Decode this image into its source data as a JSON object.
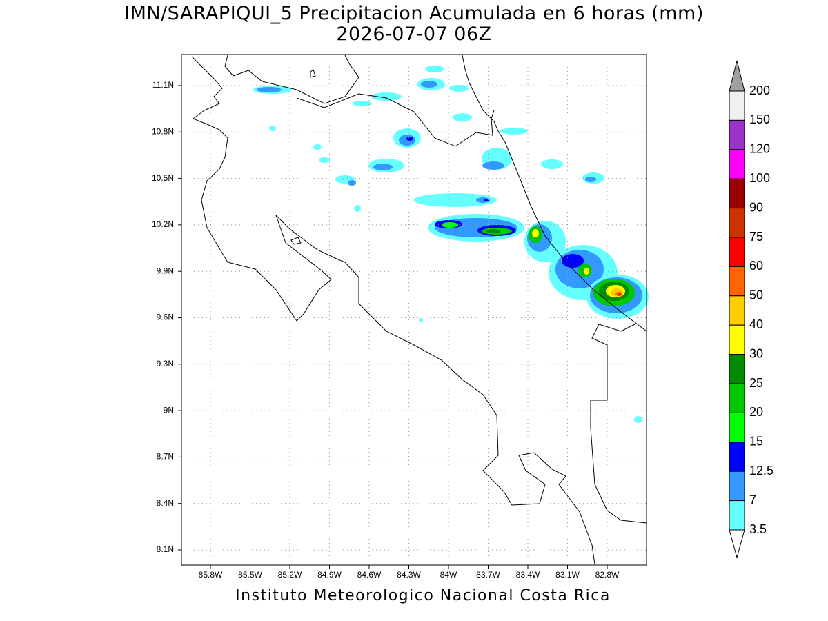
{
  "header": {
    "title": "IMN/SARAPIQUI_5 Precipitacion Acumulada en 6 horas (mm)",
    "subtitle": "2026-07-07 06Z"
  },
  "map": {
    "lon_labels": [
      "85.8W",
      "85.5W",
      "85.2W",
      "84.9W",
      "84.6W",
      "84.3W",
      "84W",
      "83.7W",
      "83.4W",
      "83.1W",
      "82.8W"
    ],
    "lat_labels": [
      "11.1N",
      "10.8N",
      "10.5N",
      "10.2N",
      "9.9N",
      "9.6N",
      "9.3N",
      "9N",
      "8.7N",
      "8.4N",
      "8.1N"
    ]
  },
  "colorbar": {
    "labels": [
      "200",
      "150",
      "120",
      "100",
      "90",
      "75",
      "60",
      "50",
      "40",
      "30",
      "25",
      "20",
      "15",
      "12.5",
      "7",
      "3.5"
    ],
    "colors": [
      "#f0f0f0",
      "#9933cc",
      "#ff00ff",
      "#990000",
      "#cc3300",
      "#ff0000",
      "#ff6600",
      "#ffcc00",
      "#ffff00",
      "#008c00",
      "#00c800",
      "#00ff00",
      "#0000ff",
      "#3399ff",
      "#66ffff"
    ],
    "over_color": "#a0a0a0",
    "under_color": "#ffffff"
  },
  "footer": {
    "text": "Instituto Meteorologico Nacional Costa Rica"
  }
}
